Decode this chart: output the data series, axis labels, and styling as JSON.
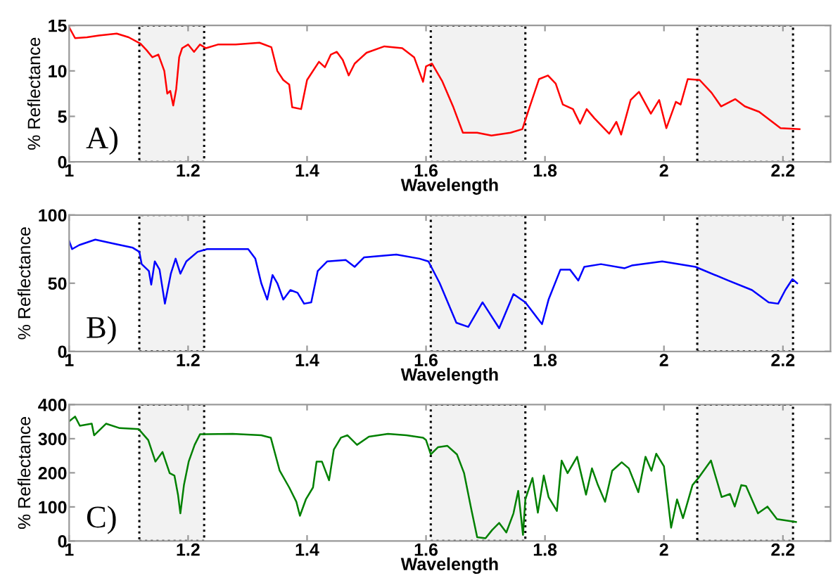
{
  "chart_data": [
    {
      "type": "line",
      "xlabel": "Wavelength",
      "ylabel": "% Reflectance",
      "annotations": [
        "A)"
      ],
      "xlim": [
        1,
        2.28
      ],
      "xticks": [
        1,
        1.2,
        1.4,
        1.6,
        1.8,
        2,
        2.2
      ],
      "ylim": [
        0,
        15
      ],
      "yticks": [
        0,
        5,
        10,
        15
      ],
      "grid": false,
      "legend": false,
      "marker": "none",
      "line_style": "solid",
      "bands": [
        {
          "axis": "x",
          "from": 1.118,
          "to": 1.227
        },
        {
          "axis": "x",
          "from": 1.608,
          "to": 1.767
        },
        {
          "axis": "x",
          "from": 2.056,
          "to": 2.217
        }
      ],
      "series": [
        {
          "color": "#ff0000",
          "x": [
            1.0,
            1.01,
            1.03,
            1.05,
            1.08,
            1.1,
            1.12,
            1.13,
            1.14,
            1.15,
            1.16,
            1.165,
            1.17,
            1.175,
            1.18,
            1.185,
            1.19,
            1.2,
            1.21,
            1.22,
            1.23,
            1.25,
            1.28,
            1.32,
            1.34,
            1.35,
            1.36,
            1.37,
            1.375,
            1.39,
            1.4,
            1.42,
            1.43,
            1.44,
            1.45,
            1.46,
            1.47,
            1.48,
            1.5,
            1.53,
            1.56,
            1.58,
            1.595,
            1.6,
            1.61,
            1.627,
            1.646,
            1.662,
            1.686,
            1.71,
            1.742,
            1.762,
            1.774,
            1.79,
            1.805,
            1.818,
            1.83,
            1.847,
            1.859,
            1.87,
            1.883,
            1.908,
            1.92,
            1.928,
            1.944,
            1.958,
            1.978,
            1.992,
            2.004,
            2.02,
            2.028,
            2.04,
            2.06,
            2.08,
            2.096,
            2.12,
            2.136,
            2.16,
            2.196,
            2.228
          ],
          "values": [
            14.8,
            13.6,
            13.7,
            13.9,
            14.1,
            13.7,
            13.0,
            12.3,
            11.5,
            11.8,
            10.0,
            7.5,
            7.8,
            6.2,
            8.0,
            11.5,
            12.5,
            12.9,
            12.1,
            12.9,
            12.5,
            12.9,
            12.9,
            13.1,
            12.6,
            10.0,
            9.0,
            8.5,
            6.0,
            5.8,
            9.0,
            11.0,
            10.4,
            11.8,
            12.1,
            11.2,
            9.5,
            10.8,
            12.0,
            12.7,
            12.5,
            11.5,
            8.8,
            10.5,
            10.8,
            8.9,
            6.0,
            3.2,
            3.2,
            2.9,
            3.2,
            3.6,
            6.0,
            9.1,
            9.5,
            8.6,
            6.3,
            5.8,
            4.2,
            5.8,
            4.8,
            3.1,
            4.4,
            3.0,
            6.8,
            7.7,
            5.3,
            6.8,
            3.7,
            6.6,
            6.3,
            9.1,
            9.0,
            7.6,
            6.1,
            6.9,
            6.1,
            5.5,
            3.7,
            3.6
          ]
        }
      ]
    },
    {
      "type": "line",
      "xlabel": "Wavelength",
      "ylabel": "% Reflectance",
      "annotations": [
        "B)"
      ],
      "xlim": [
        1,
        2.28
      ],
      "xticks": [
        1,
        1.2,
        1.4,
        1.6,
        1.8,
        2,
        2.2
      ],
      "ylim": [
        0,
        100
      ],
      "yticks": [
        0,
        50,
        100
      ],
      "grid": false,
      "legend": false,
      "marker": "none",
      "line_style": "solid",
      "bands": [
        {
          "axis": "x",
          "from": 1.118,
          "to": 1.227
        },
        {
          "axis": "x",
          "from": 1.608,
          "to": 1.767
        },
        {
          "axis": "x",
          "from": 2.056,
          "to": 2.217
        }
      ],
      "series": [
        {
          "color": "#0000ff",
          "x": [
            1.0,
            1.005,
            1.017,
            1.044,
            1.075,
            1.107,
            1.118,
            1.122,
            1.134,
            1.138,
            1.144,
            1.152,
            1.161,
            1.171,
            1.179,
            1.187,
            1.197,
            1.216,
            1.232,
            1.262,
            1.301,
            1.313,
            1.323,
            1.333,
            1.342,
            1.35,
            1.36,
            1.372,
            1.384,
            1.395,
            1.407,
            1.418,
            1.434,
            1.465,
            1.48,
            1.496,
            1.55,
            1.589,
            1.604,
            1.623,
            1.651,
            1.671,
            1.695,
            1.723,
            1.747,
            1.767,
            1.795,
            1.806,
            1.826,
            1.842,
            1.856,
            1.866,
            1.894,
            1.934,
            1.946,
            1.997,
            2.053,
            2.108,
            2.148,
            2.176,
            2.192,
            2.204,
            2.216,
            2.224
          ],
          "values": [
            81,
            75,
            78,
            82,
            79,
            76,
            73,
            64,
            59,
            49,
            66,
            60,
            35,
            57,
            68,
            57,
            66,
            73,
            75,
            75,
            75,
            68,
            50,
            38,
            56,
            50,
            38,
            45,
            43,
            35,
            36,
            59,
            66,
            67,
            62,
            69,
            71,
            68,
            66,
            50,
            21,
            18,
            36,
            17,
            42,
            36,
            20,
            38,
            60,
            60,
            52,
            62,
            64,
            61,
            63,
            66,
            62,
            52,
            45,
            36,
            35,
            45,
            53,
            50
          ]
        }
      ]
    },
    {
      "type": "line",
      "xlabel": "Wavelength",
      "ylabel": "% Reflectance",
      "annotations": [
        "C)"
      ],
      "xlim": [
        1,
        2.28
      ],
      "xticks": [
        1,
        1.2,
        1.4,
        1.6,
        1.8,
        2,
        2.2
      ],
      "ylim": [
        0,
        400
      ],
      "yticks": [
        0,
        100,
        200,
        300,
        400
      ],
      "grid": false,
      "legend": false,
      "marker": "none",
      "line_style": "solid",
      "bands": [
        {
          "axis": "x",
          "from": 1.118,
          "to": 1.227
        },
        {
          "axis": "x",
          "from": 1.608,
          "to": 1.767
        },
        {
          "axis": "x",
          "from": 2.056,
          "to": 2.217
        }
      ],
      "series": [
        {
          "color": "#008000",
          "x": [
            1.0,
            1.01,
            1.018,
            1.038,
            1.042,
            1.062,
            1.085,
            1.117,
            1.133,
            1.145,
            1.157,
            1.169,
            1.177,
            1.183,
            1.187,
            1.193,
            1.201,
            1.211,
            1.22,
            1.228,
            1.275,
            1.323,
            1.339,
            1.354,
            1.37,
            1.382,
            1.388,
            1.398,
            1.41,
            1.416,
            1.425,
            1.437,
            1.445,
            1.457,
            1.468,
            1.484,
            1.504,
            1.536,
            1.567,
            1.595,
            1.6,
            1.608,
            1.62,
            1.636,
            1.652,
            1.664,
            1.676,
            1.686,
            1.7,
            1.711,
            1.723,
            1.735,
            1.747,
            1.755,
            1.763,
            1.767,
            1.779,
            1.788,
            1.798,
            1.806,
            1.82,
            1.828,
            1.838,
            1.854,
            1.869,
            1.879,
            1.889,
            1.901,
            1.913,
            1.929,
            1.941,
            1.957,
            1.969,
            1.979,
            1.987,
            2.0,
            2.012,
            2.022,
            2.032,
            2.048,
            2.058,
            2.079,
            2.097,
            2.111,
            2.119,
            2.13,
            2.138,
            2.158,
            2.174,
            2.19,
            2.222
          ],
          "values": [
            351,
            365,
            338,
            344,
            310,
            344,
            331,
            328,
            296,
            233,
            261,
            199,
            192,
            136,
            81,
            164,
            233,
            282,
            313,
            313,
            314,
            310,
            303,
            206,
            157,
            115,
            74,
            122,
            157,
            233,
            233,
            178,
            268,
            303,
            310,
            282,
            306,
            314,
            310,
            303,
            296,
            254,
            275,
            279,
            254,
            199,
            94,
            11,
            8,
            32,
            53,
            25,
            81,
            147,
            18,
            122,
            185,
            83,
            192,
            129,
            88,
            236,
            199,
            247,
            136,
            213,
            164,
            115,
            206,
            231,
            213,
            143,
            247,
            206,
            256,
            219,
            39,
            122,
            67,
            164,
            185,
            236,
            129,
            138,
            101,
            164,
            161,
            81,
            101,
            64,
            56
          ]
        }
      ]
    }
  ]
}
